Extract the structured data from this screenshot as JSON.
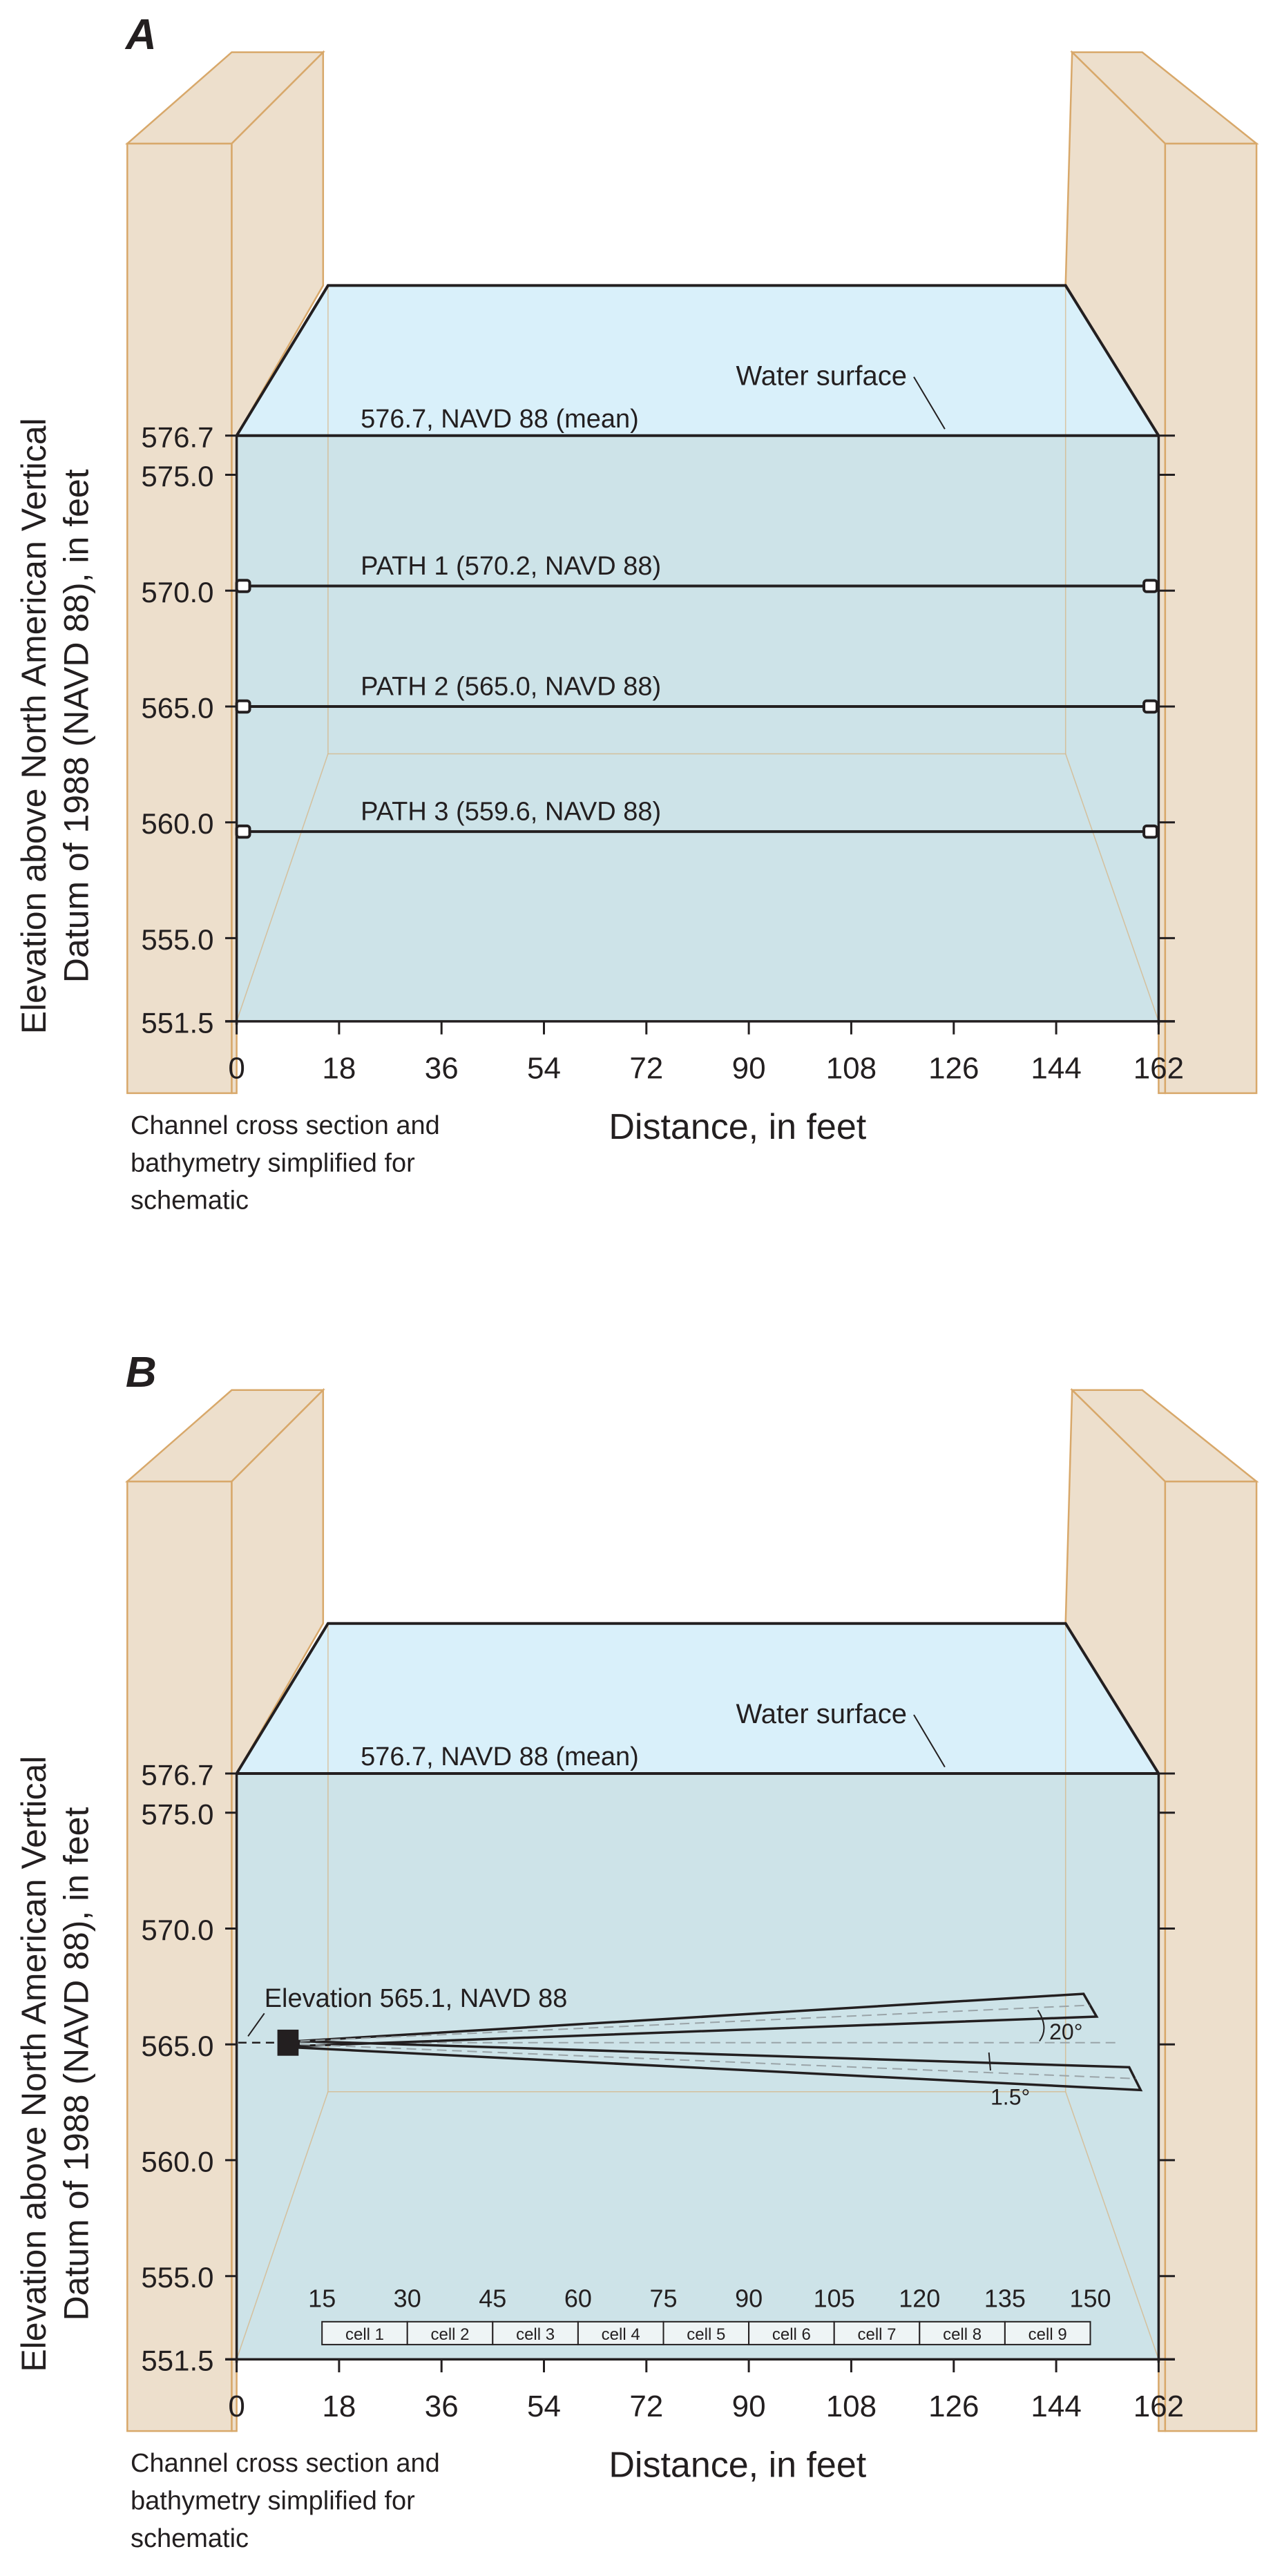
{
  "colors": {
    "wall_fill": "#eddfcc",
    "wall_stroke": "#d8a86a",
    "water_top": "#d9f0fa",
    "water_front": "#cde3e8",
    "line": "#231f20",
    "dashed": "#9aa4a8"
  },
  "common": {
    "x_ticks": [
      "0",
      "18",
      "36",
      "54",
      "72",
      "90",
      "108",
      "126",
      "144",
      "162"
    ],
    "y_ticks": [
      "576.7",
      "575.0",
      "570.0",
      "565.0",
      "560.0",
      "555.0",
      "551.5"
    ],
    "xlabel": "Distance, in feet",
    "ylabel_line1": "Elevation above North American Vertical",
    "ylabel_line2": "Datum of 1988 (NAVD 88), in feet",
    "note_line1": "Channel cross section and",
    "note_line2": "bathymetry simplified for",
    "note_line3": "schematic",
    "water_surface_label": "Water surface",
    "mean_label": "576.7, NAVD 88 (mean)"
  },
  "panel_a": {
    "title": "A",
    "paths": [
      {
        "label": "PATH 1 (570.2, NAVD 88)",
        "elevation": 570.2
      },
      {
        "label": "PATH 2 (565.0, NAVD 88)",
        "elevation": 565.0
      },
      {
        "label": "PATH 3 (559.6, NAVD 88)",
        "elevation": 559.6
      }
    ]
  },
  "panel_b": {
    "title": "B",
    "elevation_label": "Elevation 565.1, NAVD 88",
    "angle_upper": "20°",
    "angle_lower": "1.5°",
    "cell_distances": [
      "15",
      "30",
      "45",
      "60",
      "75",
      "90",
      "105",
      "120",
      "135",
      "150"
    ],
    "cells": [
      "cell 1",
      "cell 2",
      "cell 3",
      "cell 4",
      "cell 5",
      "cell 6",
      "cell 7",
      "cell 8",
      "cell 9"
    ]
  }
}
